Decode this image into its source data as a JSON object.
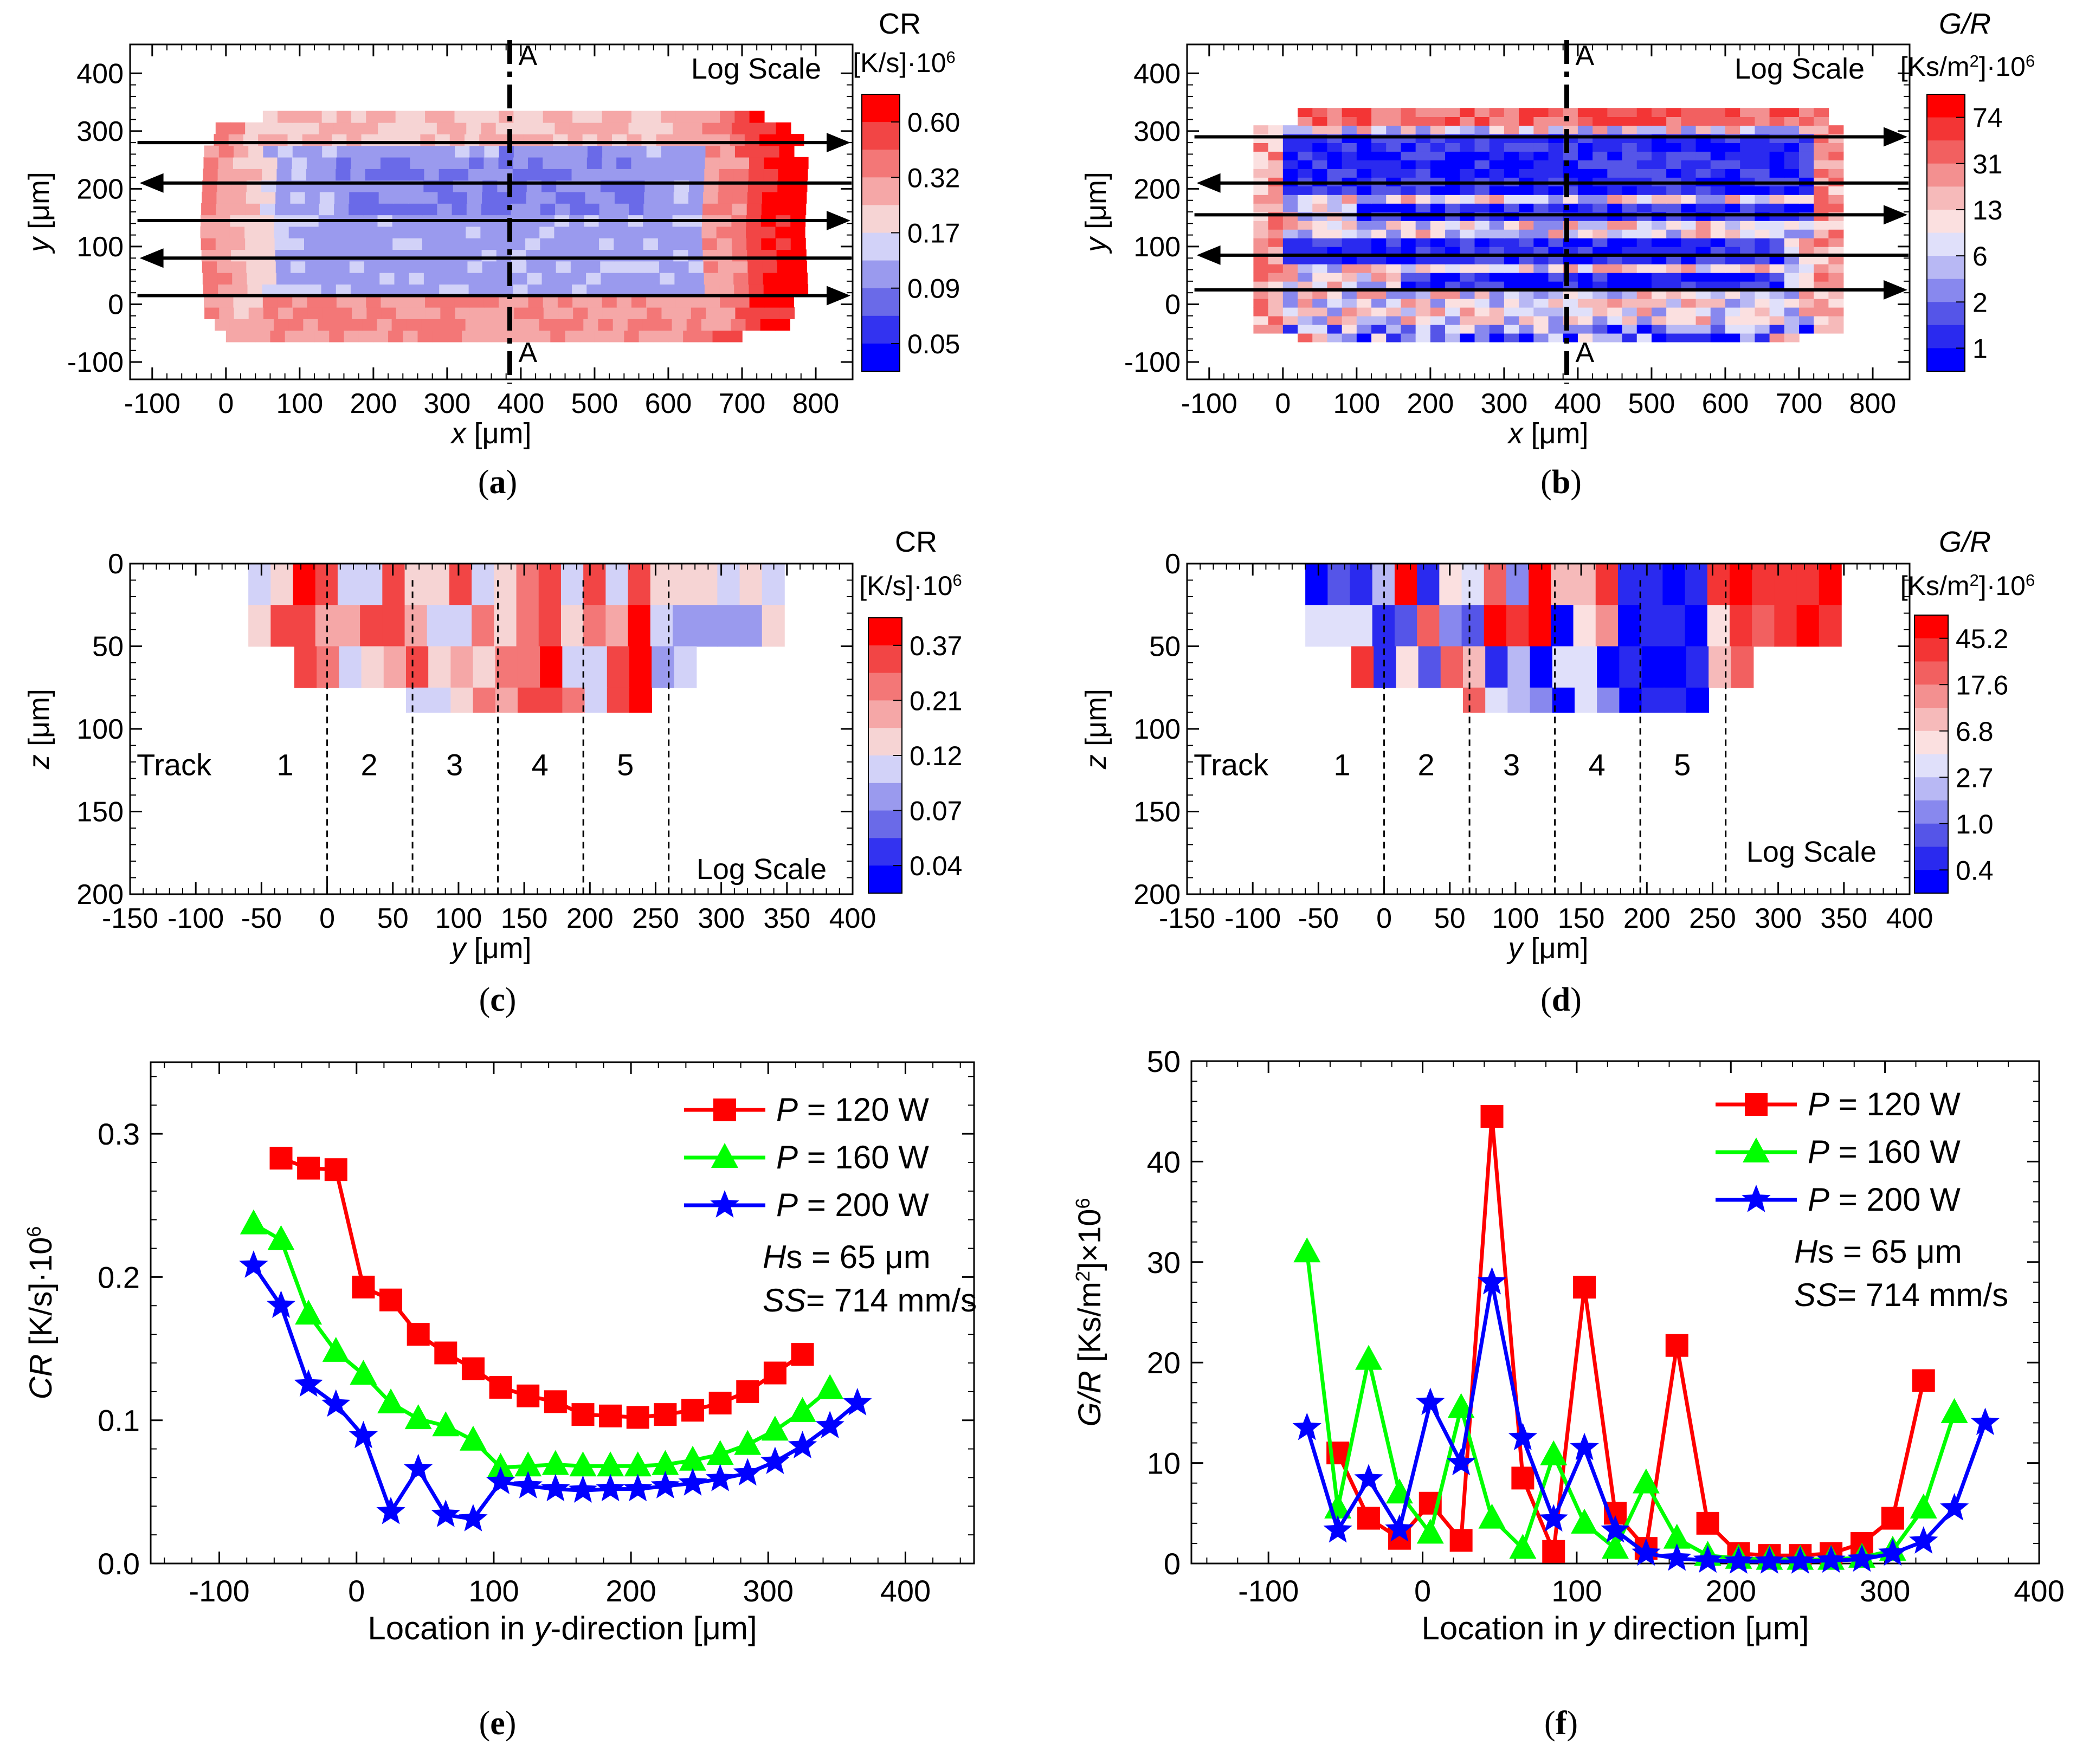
{
  "chart_data": [
    {
      "id": "a",
      "type": "heatmap",
      "panel_label": "(a)",
      "title": "CR",
      "units": "[K/s]·10",
      "units_exp": "6",
      "scale_note": "Log Scale",
      "xlabel_var": "x",
      "xlabel_unit": " [μm]",
      "ylabel_var": "y",
      "ylabel_unit": " [μm]",
      "xlim": [
        -130,
        850
      ],
      "ylim": [
        -130,
        450
      ],
      "xticks": [
        "-100",
        "0",
        "100",
        "200",
        "300",
        "400",
        "500",
        "600",
        "700",
        "800"
      ],
      "yticks": [
        "-100",
        "0",
        "100",
        "200",
        "300",
        "400"
      ],
      "colorbar_labels": [
        "0.60",
        "0.32",
        "0.17",
        "0.09",
        "0.05"
      ],
      "section_label": "A",
      "scan_tracks_y": [
        280,
        210,
        145,
        80,
        15
      ]
    },
    {
      "id": "b",
      "type": "heatmap",
      "panel_label": "(b)",
      "title_var": "G/R",
      "units": "[Ks/m",
      "units_sup": "2",
      "units_tail": "]·10",
      "units_exp": "6",
      "scale_note": "Log Scale",
      "xlabel_var": "x",
      "xlabel_unit": " [μm]",
      "ylabel_var": "y",
      "ylabel_unit": " [μm]",
      "xlim": [
        -130,
        850
      ],
      "ylim": [
        -130,
        450
      ],
      "xticks": [
        "-100",
        "0",
        "100",
        "200",
        "300",
        "400",
        "500",
        "600",
        "700",
        "800"
      ],
      "yticks": [
        "-100",
        "0",
        "100",
        "200",
        "300",
        "400"
      ],
      "colorbar_labels": [
        "74",
        "31",
        "13",
        "6",
        "2",
        "1"
      ],
      "section_label": "A",
      "scan_tracks_y": [
        290,
        210,
        155,
        85,
        25
      ]
    },
    {
      "id": "c",
      "type": "heatmap",
      "panel_label": "(c)",
      "title": "CR",
      "units": "[K/s]·10",
      "units_exp": "6",
      "scale_note": "Log Scale",
      "xlabel_var": "y",
      "xlabel_unit": " [μm]",
      "ylabel_var": "z",
      "ylabel_unit": " [μm]",
      "xlim": [
        -150,
        400
      ],
      "ylim": [
        0,
        200
      ],
      "xticks": [
        "-150",
        "-100",
        "-50",
        "0",
        "50",
        "100",
        "150",
        "200",
        "250",
        "300",
        "350",
        "400"
      ],
      "yticks": [
        "0",
        "50",
        "100",
        "150",
        "200"
      ],
      "colorbar_labels": [
        "0.37",
        "0.21",
        "0.12",
        "0.07",
        "0.04"
      ],
      "track_word": "Track",
      "tracks": [
        "1",
        "2",
        "3",
        "4",
        "5"
      ],
      "track_boundaries": [
        0,
        65,
        130,
        195,
        260
      ]
    },
    {
      "id": "d",
      "type": "heatmap",
      "panel_label": "(d)",
      "title_var": "G/R",
      "units": "[Ks/m",
      "units_sup": "2",
      "units_tail": "]·10",
      "units_exp": "6",
      "scale_note": "Log Scale",
      "xlabel_var": "y",
      "xlabel_unit": " [μm]",
      "ylabel_var": "z",
      "ylabel_unit": " [μm]",
      "xlim": [
        -150,
        400
      ],
      "ylim": [
        0,
        200
      ],
      "xticks": [
        "-150",
        "-100",
        "-50",
        "0",
        "50",
        "100",
        "150",
        "200",
        "250",
        "300",
        "350",
        "400"
      ],
      "yticks": [
        "0",
        "50",
        "100",
        "150",
        "200"
      ],
      "colorbar_labels": [
        "45.2",
        "17.6",
        "6.8",
        "2.7",
        "1.0",
        "0.4"
      ],
      "track_word": "Track",
      "tracks": [
        "1",
        "2",
        "3",
        "4",
        "5"
      ],
      "track_boundaries": [
        0,
        65,
        130,
        195,
        260
      ]
    },
    {
      "id": "e",
      "type": "line",
      "panel_label": "(e)",
      "xlabel_pre": "Location in ",
      "xlabel_var": "y",
      "xlabel_post": "-direction [μm]",
      "ylabel_var": "CR",
      "ylabel_rest": " [K/s]·10",
      "ylabel_exp": "6",
      "xlim": [
        -150,
        450
      ],
      "ylim": [
        0,
        0.35
      ],
      "xticks": [
        -100,
        0,
        100,
        200,
        300,
        400
      ],
      "xtick_labels": [
        "-100",
        "0",
        "100",
        "200",
        "300",
        "400"
      ],
      "yticks": [
        0,
        0.1,
        0.2,
        0.3
      ],
      "ytick_labels": [
        "0.0",
        "0.1",
        "0.2",
        "0.3"
      ],
      "annotation_hs_var": "H",
      "annotation_hs_rest": "s = 65 μm",
      "annotation_ss_var": "SS",
      "annotation_ss_rest": "= 714 mm/s",
      "series": [
        {
          "name": "P = 120 W",
          "label_var": "P",
          "label_rest": " = 120 W",
          "color": "#ff0000",
          "marker": "square",
          "x": [
            -55,
            -35,
            -15,
            5,
            25,
            45,
            65,
            85,
            105,
            125,
            145,
            165,
            185,
            205,
            225,
            245,
            265,
            285,
            305,
            325
          ],
          "y": [
            0.283,
            0.276,
            0.275,
            0.193,
            0.184,
            0.16,
            0.147,
            0.136,
            0.123,
            0.117,
            0.113,
            0.104,
            0.103,
            0.102,
            0.104,
            0.107,
            0.112,
            0.12,
            0.133,
            0.146
          ]
        },
        {
          "name": "P = 160 W",
          "label_var": "P",
          "label_rest": " = 160 W",
          "color": "#00ff00",
          "marker": "triangle",
          "x": [
            -75,
            -55,
            -35,
            -15,
            5,
            25,
            45,
            65,
            85,
            105,
            125,
            145,
            165,
            185,
            205,
            225,
            245,
            265,
            285,
            305,
            325,
            345
          ],
          "y": [
            0.237,
            0.226,
            0.174,
            0.148,
            0.132,
            0.112,
            0.101,
            0.096,
            0.086,
            0.067,
            0.068,
            0.069,
            0.068,
            0.068,
            0.068,
            0.069,
            0.072,
            0.076,
            0.083,
            0.093,
            0.106,
            0.122
          ]
        },
        {
          "name": "P = 200 W",
          "label_var": "P",
          "label_rest": " = 200 W",
          "color": "#0000ff",
          "marker": "star",
          "x": [
            -75,
            -55,
            -35,
            -15,
            5,
            25,
            45,
            65,
            85,
            105,
            125,
            145,
            165,
            185,
            205,
            225,
            245,
            265,
            285,
            305,
            325,
            345,
            365
          ],
          "y": [
            0.208,
            0.18,
            0.125,
            0.111,
            0.089,
            0.036,
            0.066,
            0.034,
            0.031,
            0.057,
            0.054,
            0.052,
            0.051,
            0.052,
            0.052,
            0.054,
            0.056,
            0.059,
            0.063,
            0.071,
            0.082,
            0.096,
            0.112
          ]
        }
      ]
    },
    {
      "id": "f",
      "type": "line",
      "panel_label": "(f)",
      "xlabel_pre": "Location in ",
      "xlabel_var": "y",
      "xlabel_post": " direction [μm]",
      "ylabel_var": "G/R",
      "ylabel_rest": " [Ks/m",
      "ylabel_sup": "2",
      "ylabel_tail": "]×10",
      "ylabel_exp": "6",
      "xlim": [
        -150,
        400
      ],
      "ylim": [
        0,
        50
      ],
      "xticks": [
        -100,
        0,
        100,
        200,
        300,
        400
      ],
      "xtick_labels": [
        "-100",
        "0",
        "100",
        "200",
        "300",
        "400"
      ],
      "yticks": [
        0,
        10,
        20,
        30,
        40,
        50
      ],
      "ytick_labels": [
        "0",
        "10",
        "20",
        "30",
        "40",
        "50"
      ],
      "annotation_hs_var": "H",
      "annotation_hs_rest": "s = 65 μm",
      "annotation_ss_var": "SS",
      "annotation_ss_rest": "= 714 mm/s",
      "series": [
        {
          "name": "P = 120 W",
          "label_var": "P",
          "label_rest": " = 120 W",
          "color": "#ff0000",
          "marker": "square",
          "x": [
            -55,
            -35,
            -15,
            5,
            25,
            45,
            65,
            85,
            105,
            125,
            145,
            165,
            185,
            205,
            225,
            245,
            265,
            285,
            305,
            325
          ],
          "y": [
            11.0,
            4.5,
            2.5,
            6.0,
            2.3,
            44.5,
            8.5,
            1.2,
            27.5,
            5.0,
            1.5,
            21.7,
            4.0,
            1.0,
            0.8,
            0.8,
            1.0,
            2.0,
            4.5,
            18.2
          ]
        },
        {
          "name": "P = 160 W",
          "label_var": "P",
          "label_rest": " = 160 W",
          "color": "#00ff00",
          "marker": "triangle",
          "x": [
            -75,
            -55,
            -35,
            -15,
            5,
            25,
            45,
            65,
            85,
            105,
            125,
            145,
            165,
            185,
            205,
            225,
            245,
            265,
            285,
            305,
            325,
            345
          ],
          "y": [
            31.0,
            5.5,
            20.3,
            7.0,
            3.0,
            15.5,
            4.5,
            1.5,
            10.8,
            4.0,
            1.5,
            8.0,
            2.5,
            0.8,
            0.5,
            0.4,
            0.4,
            0.4,
            0.6,
            1.3,
            5.5,
            15.0
          ]
        },
        {
          "name": "P = 200 W",
          "label_var": "P",
          "label_rest": " = 200 W",
          "color": "#0000ff",
          "marker": "star",
          "x": [
            -75,
            -55,
            -35,
            -15,
            5,
            25,
            45,
            65,
            85,
            105,
            125,
            145,
            165,
            185,
            205,
            225,
            245,
            265,
            285,
            305,
            325,
            345,
            365
          ],
          "y": [
            13.5,
            3.3,
            8.4,
            3.4,
            16.0,
            10.0,
            28.0,
            12.5,
            4.4,
            11.5,
            3.3,
            1.0,
            0.5,
            0.3,
            0.2,
            0.2,
            0.2,
            0.3,
            0.4,
            1.0,
            2.2,
            5.5,
            14.0
          ]
        }
      ]
    }
  ]
}
